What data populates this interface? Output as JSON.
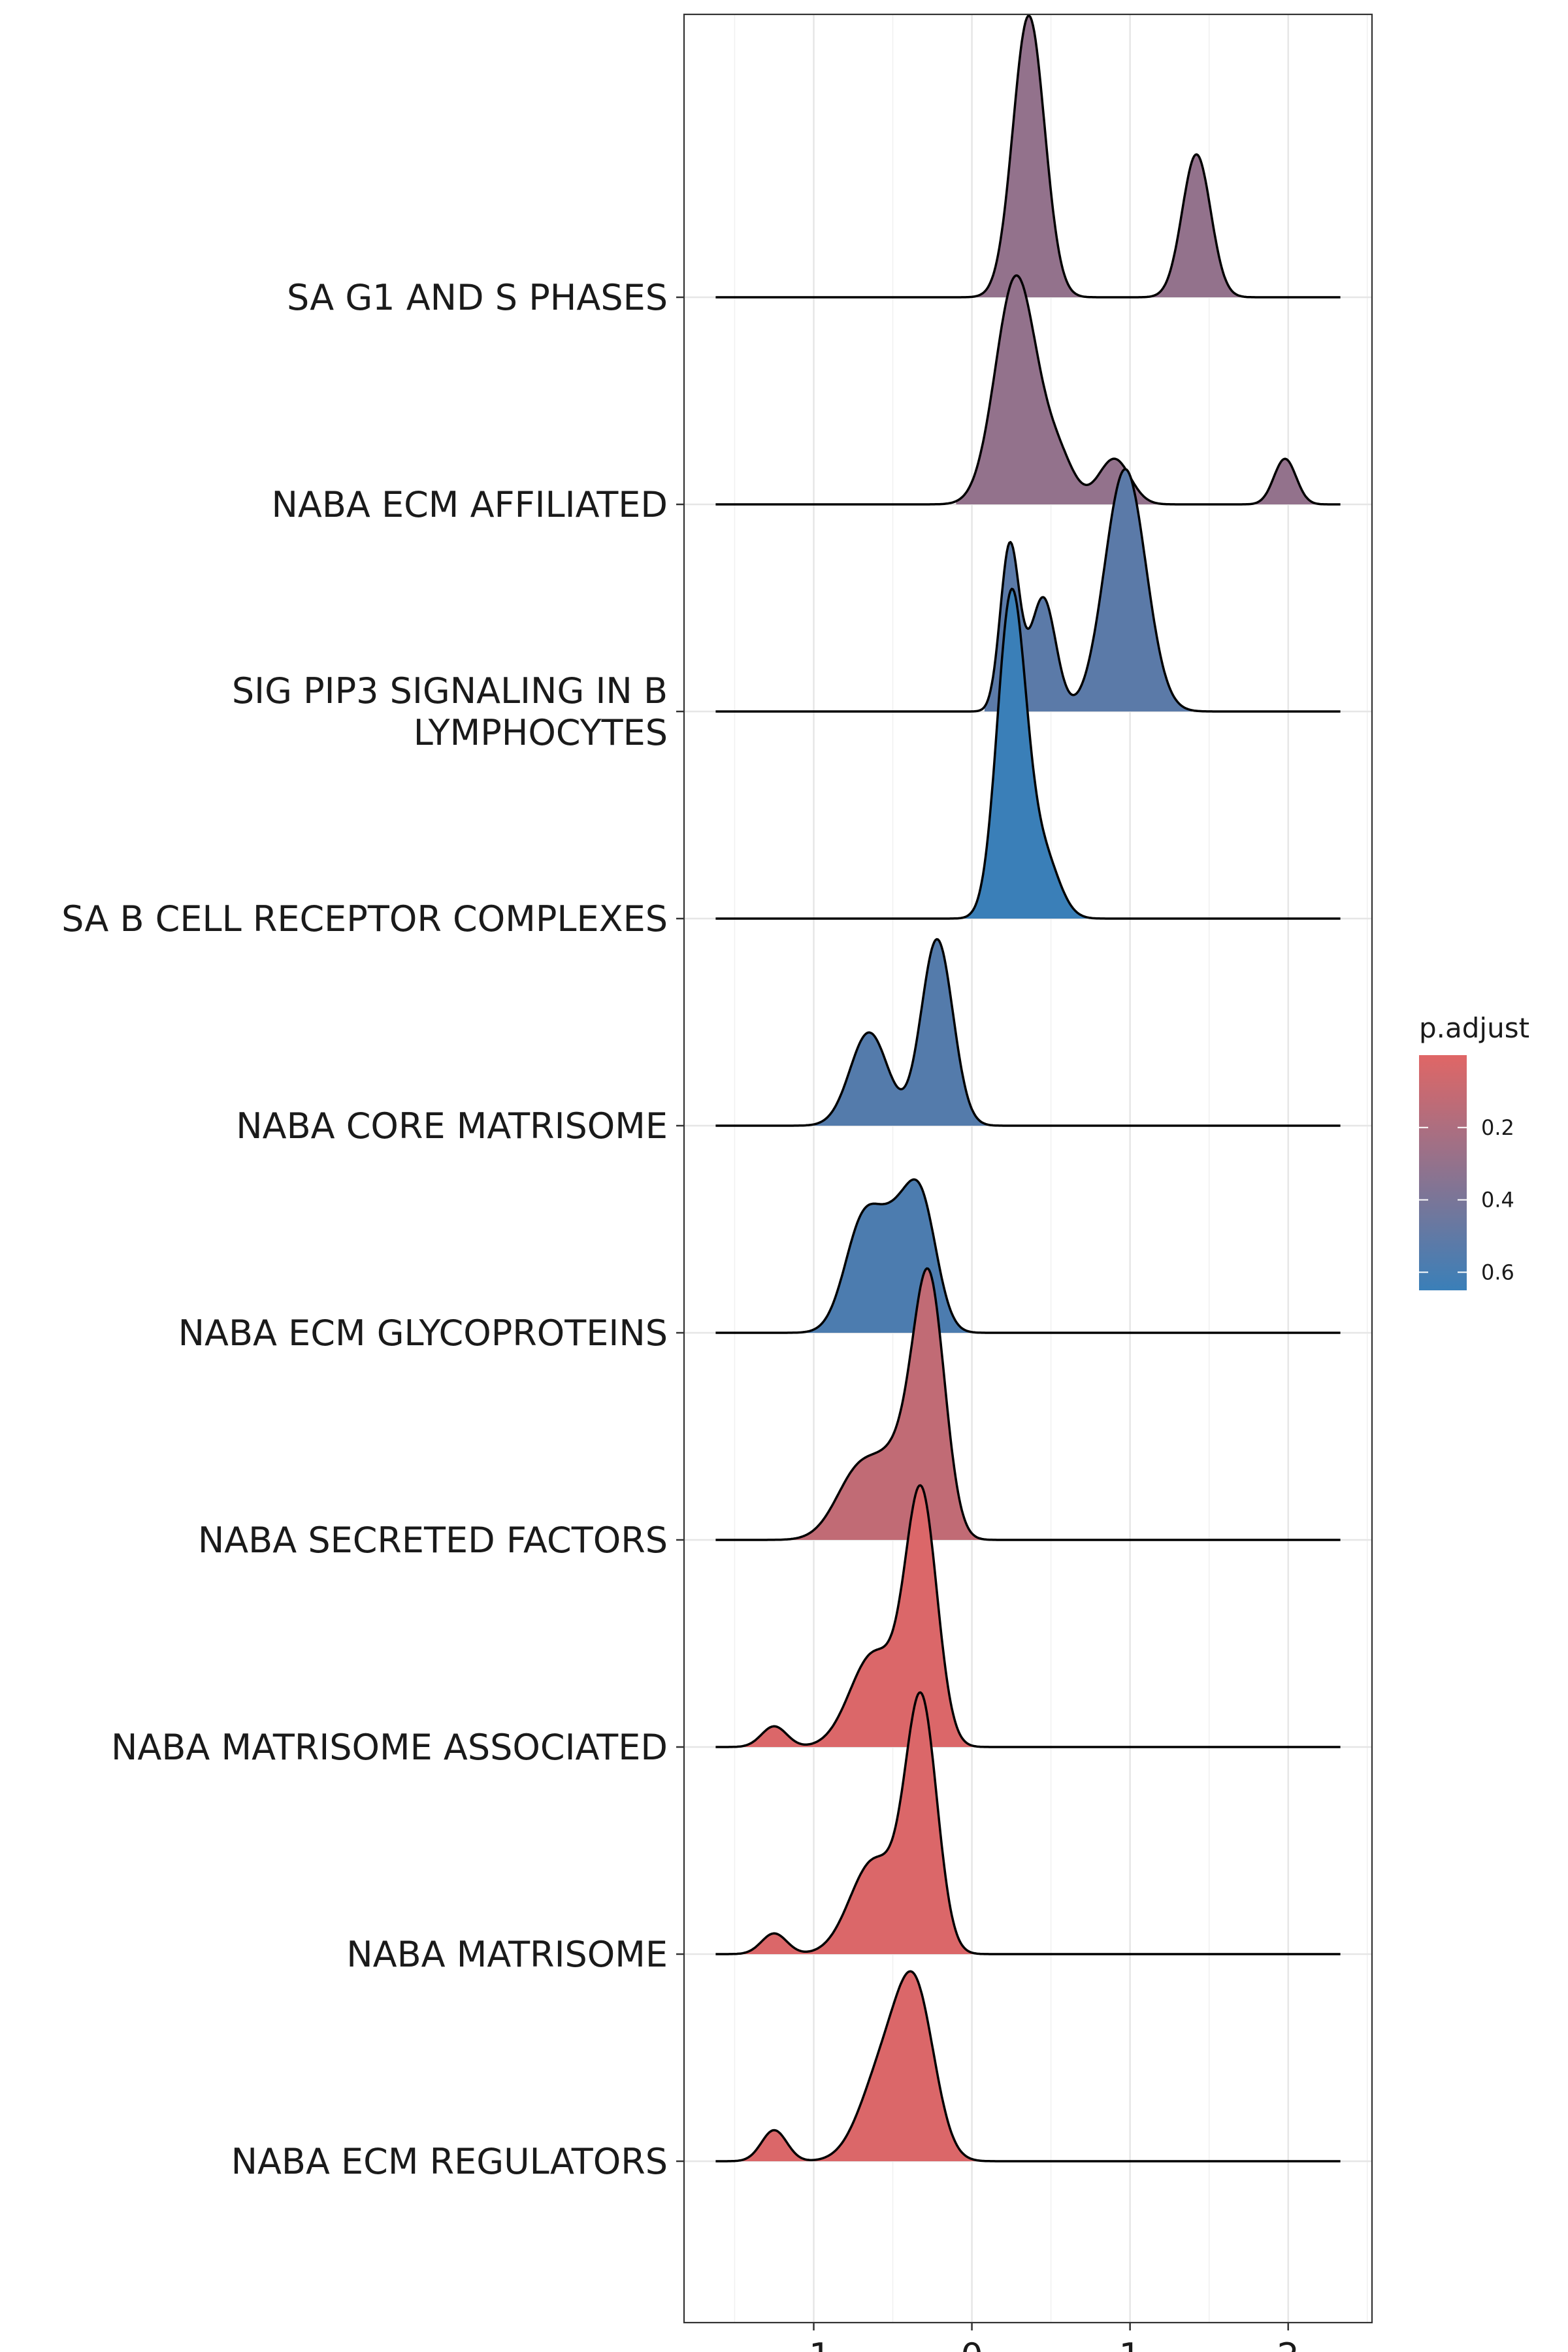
{
  "chart_data": {
    "type": "ridgeline",
    "title": "",
    "xlabel": "",
    "ylabel": "",
    "xlim": [
      -1.82,
      2.53
    ],
    "x_ticks": [
      -1,
      0,
      1,
      2
    ],
    "x_tick_labels": [
      "-1",
      "0",
      "1",
      "2"
    ],
    "grid": true,
    "legend_position": "right",
    "legend": {
      "title": "p.adjust",
      "range": [
        0.0,
        0.65
      ],
      "ticks": [
        0.2,
        0.4,
        0.6
      ],
      "tick_labels": [
        "0.2",
        "0.4",
        "0.6"
      ],
      "color_low": "#e06666",
      "color_high": "#3a7fb8"
    },
    "categories": [
      "NABA ECM REGULATORS",
      "NABA MATRISOME",
      "NABA MATRISOME ASSOCIATED",
      "NABA SECRETED FACTORS",
      "NABA ECM GLYCOPROTEINS",
      "NABA CORE MATRISOME",
      "SA B CELL RECEPTOR COMPLEXES",
      "SIG PIP3 SIGNALING IN B LYMPHOCYTES",
      "NABA ECM AFFILIATED",
      "SA G1 AND S PHASES"
    ],
    "category_label_lines": [
      [
        "NABA ECM REGULATORS"
      ],
      [
        "NABA MATRISOME"
      ],
      [
        "NABA MATRISOME ASSOCIATED"
      ],
      [
        "NABA SECRETED FACTORS"
      ],
      [
        "NABA ECM GLYCOPROTEINS"
      ],
      [
        "NABA CORE MATRISOME"
      ],
      [
        "SA B CELL RECEPTOR COMPLEXES"
      ],
      [
        "SIG PIP3 SIGNALING IN B",
        "LYMPHOCYTES"
      ],
      [
        "NABA ECM AFFILIATED"
      ],
      [
        "SA G1 AND S PHASES"
      ]
    ],
    "series": [
      {
        "p_adjust": 0.02,
        "x_range": [
          -1.62,
          2.33
        ],
        "fill_range": [
          -1.62,
          0.08
        ],
        "peaks": [
          {
            "mu": -1.25,
            "sigma": 0.08,
            "h": 0.15
          },
          {
            "mu": -0.55,
            "sigma": 0.15,
            "h": 0.45
          },
          {
            "mu": -0.35,
            "sigma": 0.12,
            "h": 0.7
          }
        ]
      },
      {
        "p_adjust": 0.02,
        "x_range": [
          -1.62,
          2.33
        ],
        "fill_range": [
          -1.62,
          0.12
        ],
        "peaks": [
          {
            "mu": -1.25,
            "sigma": 0.08,
            "h": 0.1
          },
          {
            "mu": -0.62,
            "sigma": 0.15,
            "h": 0.45
          },
          {
            "mu": -0.32,
            "sigma": 0.1,
            "h": 1.2
          }
        ]
      },
      {
        "p_adjust": 0.02,
        "x_range": [
          -1.62,
          2.33
        ],
        "fill_range": [
          -1.62,
          0.12
        ],
        "peaks": [
          {
            "mu": -1.25,
            "sigma": 0.08,
            "h": 0.1
          },
          {
            "mu": -0.62,
            "sigma": 0.15,
            "h": 0.45
          },
          {
            "mu": -0.32,
            "sigma": 0.1,
            "h": 1.2
          }
        ]
      },
      {
        "p_adjust": 0.12,
        "x_range": [
          -1.62,
          2.33
        ],
        "fill_range": [
          -1.2,
          0.15
        ],
        "peaks": [
          {
            "mu": -0.7,
            "sigma": 0.15,
            "h": 0.35
          },
          {
            "mu": -0.45,
            "sigma": 0.12,
            "h": 0.3
          },
          {
            "mu": -0.27,
            "sigma": 0.1,
            "h": 1.2
          }
        ]
      },
      {
        "p_adjust": 0.58,
        "x_range": [
          -1.62,
          2.33
        ],
        "fill_range": [
          -1.05,
          0.05
        ],
        "peaks": [
          {
            "mu": -0.68,
            "sigma": 0.12,
            "h": 0.55
          },
          {
            "mu": -0.48,
            "sigma": 0.1,
            "h": 0.35
          },
          {
            "mu": -0.32,
            "sigma": 0.1,
            "h": 0.6
          }
        ]
      },
      {
        "p_adjust": 0.55,
        "x_range": [
          -1.62,
          2.33
        ],
        "fill_range": [
          -1.05,
          0.15
        ],
        "peaks": [
          {
            "mu": -0.65,
            "sigma": 0.12,
            "h": 0.45
          },
          {
            "mu": -0.22,
            "sigma": 0.1,
            "h": 0.9
          }
        ]
      },
      {
        "p_adjust": 0.65,
        "x_range": [
          -1.62,
          2.33
        ],
        "fill_range": [
          -0.12,
          0.78
        ],
        "peaks": [
          {
            "mu": 0.25,
            "sigma": 0.09,
            "h": 1.55
          },
          {
            "mu": 0.45,
            "sigma": 0.1,
            "h": 0.3
          }
        ]
      },
      {
        "p_adjust": 0.52,
        "x_range": [
          -1.62,
          2.33
        ],
        "fill_range": [
          0.08,
          1.4
        ],
        "peaks": [
          {
            "mu": 0.24,
            "sigma": 0.06,
            "h": 0.8
          },
          {
            "mu": 0.45,
            "sigma": 0.08,
            "h": 0.55
          },
          {
            "mu": 0.97,
            "sigma": 0.13,
            "h": 1.17
          }
        ]
      },
      {
        "p_adjust": 0.3,
        "x_range": [
          -1.62,
          2.33
        ],
        "fill_range": [
          -0.1,
          2.33
        ],
        "peaks": [
          {
            "mu": 0.28,
            "sigma": 0.13,
            "h": 1.1
          },
          {
            "mu": 0.55,
            "sigma": 0.1,
            "h": 0.2
          },
          {
            "mu": 0.9,
            "sigma": 0.1,
            "h": 0.22
          },
          {
            "mu": 1.98,
            "sigma": 0.07,
            "h": 0.22
          }
        ]
      },
      {
        "p_adjust": 0.3,
        "x_range": [
          -1.62,
          2.33
        ],
        "fill_range": [
          0.0,
          1.75
        ],
        "peaks": [
          {
            "mu": 0.36,
            "sigma": 0.1,
            "h": 1.36
          },
          {
            "mu": 1.42,
            "sigma": 0.09,
            "h": 0.69
          }
        ]
      }
    ]
  }
}
